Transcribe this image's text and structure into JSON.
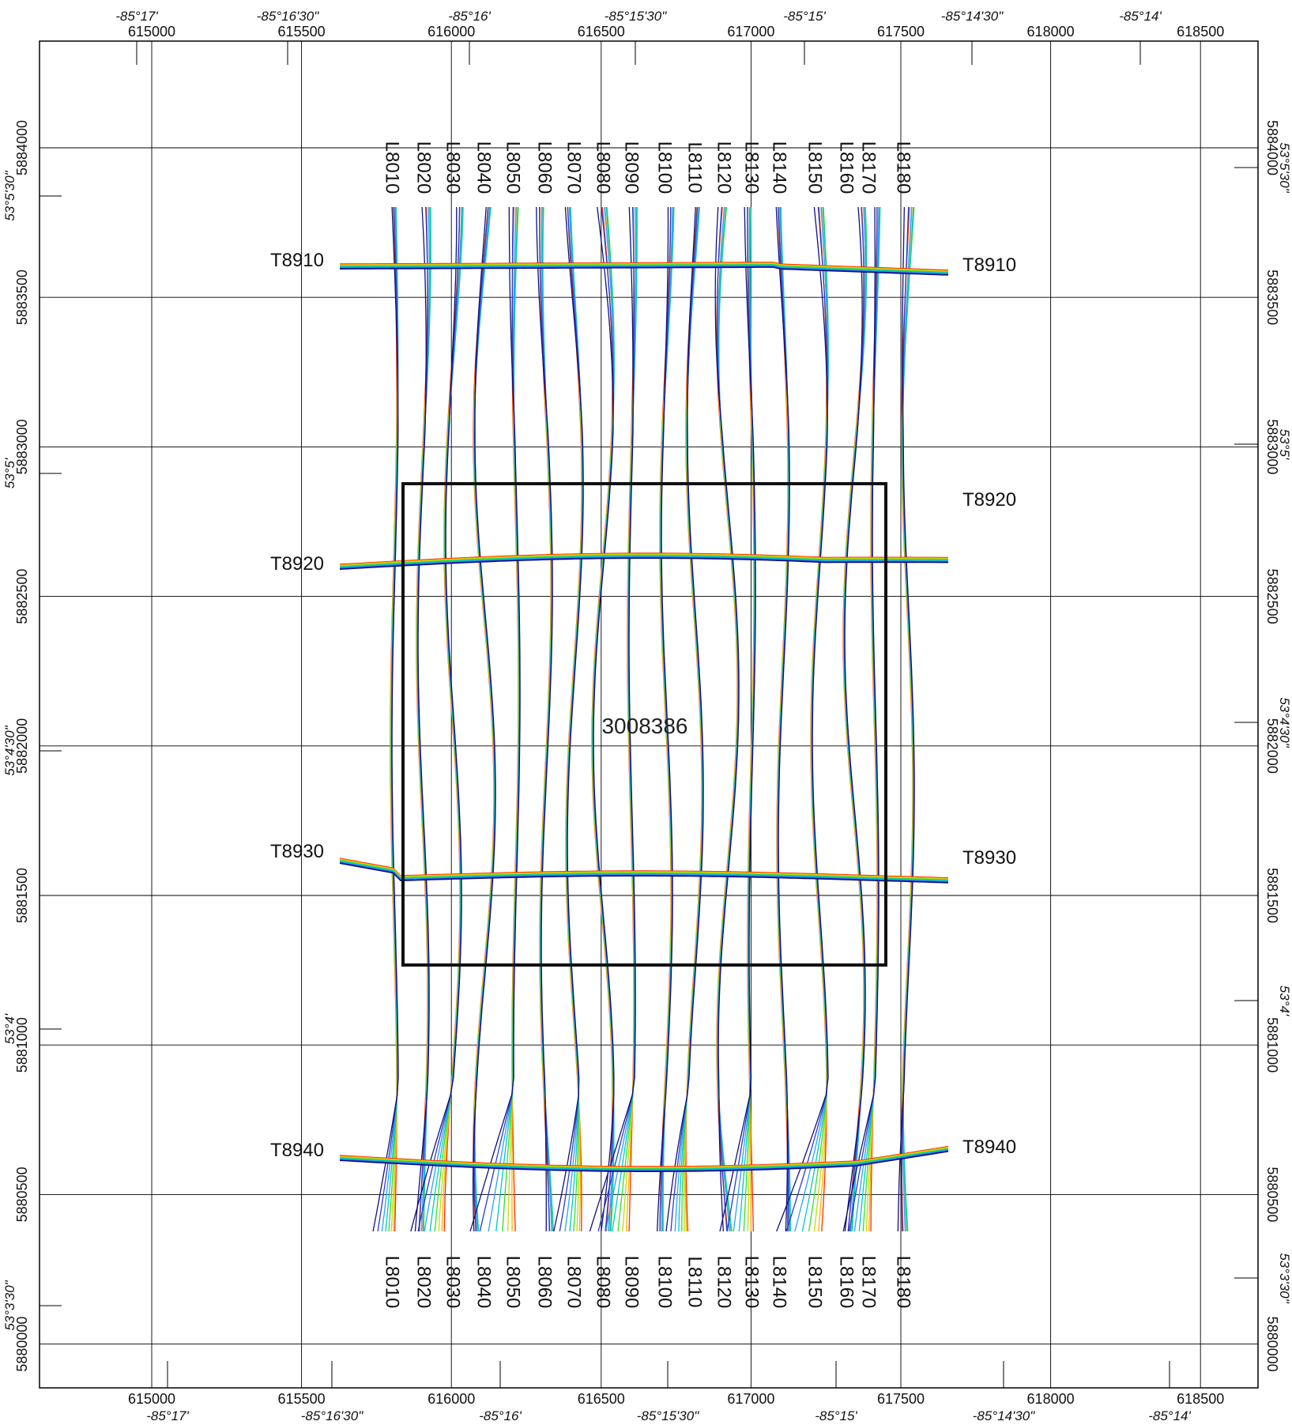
{
  "map": {
    "block_label": "3008386",
    "colors": {
      "grid": "#000000",
      "frame": "#000000",
      "block": "#111111",
      "profile_ramp": [
        "#ff2a00",
        "#ffb000",
        "#b8e000",
        "#33dd33",
        "#00c8c8",
        "#2aa0ff",
        "#2a3acc",
        "#10107a"
      ]
    },
    "easting_ticks": [
      "615000",
      "615500",
      "616000",
      "616500",
      "617000",
      "617500",
      "618000",
      "618500"
    ],
    "northing_ticks": [
      "5880000",
      "5880500",
      "5881000",
      "5881500",
      "5882000",
      "5882500",
      "5883000",
      "5883500",
      "5884000"
    ],
    "longitude_top": [
      "-85°17'",
      "-85°16'30\"",
      "-85°16'",
      "-85°15'30\"",
      "-85°15'",
      "-85°14'30\"",
      "-85°14'"
    ],
    "longitude_bottom": [
      "-85°17'",
      "-85°16'30\"",
      "-85°16'",
      "-85°15'30\"",
      "-85°15'",
      "-85°14'30\"",
      "-85°14'"
    ],
    "latitude_left": [
      "53°5'30\"",
      "53°5'",
      "53°4'30\"",
      "53°4'",
      "53°3'30\""
    ],
    "latitude_right": [
      "53°5'30\"",
      "53°5'",
      "53°4'30\"",
      "53°4'",
      "53°3'30\""
    ],
    "flight_lines": [
      "L8010",
      "L8020",
      "L8030",
      "L8040",
      "L8050",
      "L8060",
      "L8070",
      "L8080",
      "L8090",
      "L8100",
      "L8110",
      "L8120",
      "L8130",
      "L8140",
      "L8150",
      "L8160",
      "L8170",
      "L8180"
    ],
    "tie_lines": [
      "T8910",
      "T8920",
      "T8930",
      "T8940"
    ]
  }
}
